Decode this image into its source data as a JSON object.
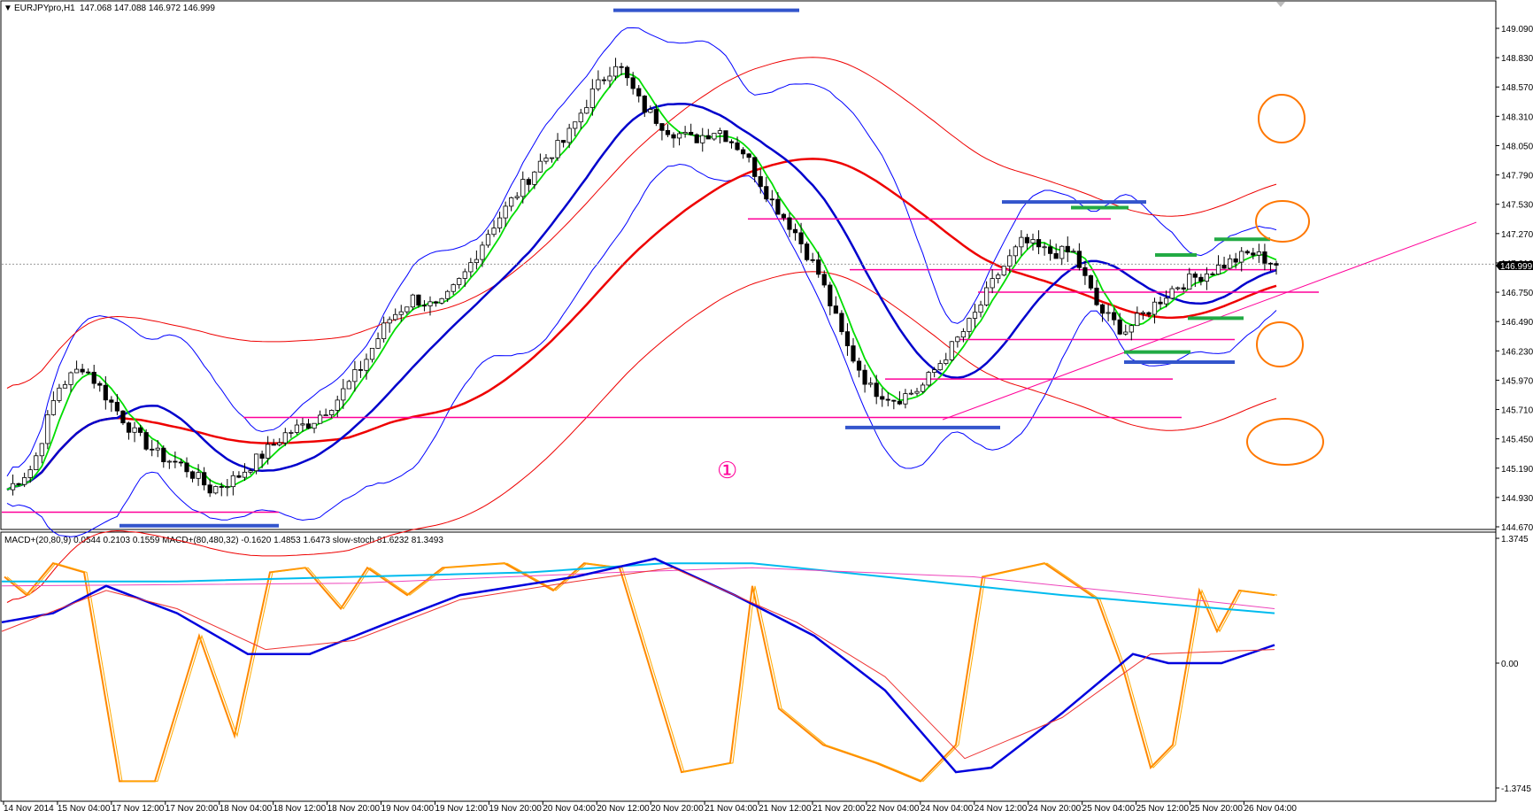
{
  "window": {
    "symbol": "EURJPYpro,H1",
    "ohlc": "147.068 147.088 146.972 146.999"
  },
  "indicator_header": "MACD+(20,80,9) 0.0544 0.2103 0.1559  MACD+(80,480,32) -0.1620 1.4853 1.6473  slow-stoch 81.6232 81.3493",
  "annotation": "①",
  "colors": {
    "bull_candle": "#ffffff",
    "bear_candle": "#000000",
    "bb_line": "#0000ff",
    "ma_fast": "#00dd00",
    "ma_mid": "#0000cc",
    "ma_slow": "#ee0000",
    "envelope": "#ee0000",
    "hline": "#ff0099",
    "trend": "#ff0099",
    "blue_marker": "#3355cc",
    "green_marker": "#22aa44",
    "circle": "#ff7700",
    "stoch": "#ff8800",
    "macd_fast": "#0000dd",
    "macd_signal": "#ee3333",
    "macd_slow": "#00bbee",
    "macd_slow_signal": "#ee44bb",
    "current_price_bg": "#000000"
  },
  "chart_data": [
    {
      "type": "candlestick",
      "symbol": "EURJPYpro,H1",
      "ylim": [
        144.67,
        149.35
      ],
      "y_ticks": [
        "149.090",
        "148.830",
        "148.570",
        "148.310",
        "148.050",
        "147.790",
        "147.530",
        "147.270",
        "147.010",
        "146.750",
        "146.490",
        "146.230",
        "145.970",
        "145.710",
        "145.450",
        "145.190",
        "144.930",
        "144.670"
      ],
      "current_price": "146.999",
      "x_tick_labels": [
        "14 Nov 2014",
        "15 Nov 04:00",
        "17 Nov 12:00",
        "17 Nov 20:00",
        "18 Nov 04:00",
        "18 Nov 12:00",
        "18 Nov 20:00",
        "19 Nov 04:00",
        "19 Nov 12:00",
        "19 Nov 20:00",
        "20 Nov 04:00",
        "20 Nov 12:00",
        "20 Nov 20:00",
        "21 Nov 04:00",
        "21 Nov 12:00",
        "21 Nov 20:00",
        "22 Nov 04:00",
        "24 Nov 04:00",
        "24 Nov 12:00",
        "24 Nov 20:00",
        "25 Nov 04:00",
        "25 Nov 12:00",
        "25 Nov 20:00",
        "26 Nov 04:00"
      ],
      "close_path": [
        145.0,
        145.2,
        145.9,
        146.1,
        145.8,
        145.5,
        145.3,
        145.2,
        145.0,
        145.1,
        145.3,
        145.5,
        145.6,
        145.8,
        146.1,
        146.5,
        146.7,
        146.6,
        146.9,
        147.3,
        147.6,
        147.9,
        148.1,
        148.5,
        148.8,
        148.4,
        148.2,
        148.1,
        148.2,
        148.0,
        147.6,
        147.3,
        146.9,
        146.3,
        145.9,
        145.8,
        145.9,
        146.2,
        146.5,
        146.9,
        147.2,
        147.1,
        147.1,
        146.6,
        146.4,
        146.6,
        146.8,
        146.9,
        147.0,
        147.1,
        147.0
      ],
      "horizontal_levels": [
        146.95,
        146.75,
        146.33,
        145.98,
        145.64,
        144.8,
        147.4
      ],
      "blue_markers": [
        149.25,
        147.55,
        146.13,
        145.55,
        144.68
      ],
      "green_markers": [
        147.5,
        147.08,
        147.22,
        146.52,
        146.22
      ]
    },
    {
      "type": "line",
      "title": "MACD+(20,80,9) MACD+(80,480,32) slow-stoch",
      "ylim": [
        -1.3745,
        1.3745
      ],
      "y_ticks": [
        "1.3745",
        "0.00",
        "-1.3745"
      ]
    }
  ]
}
